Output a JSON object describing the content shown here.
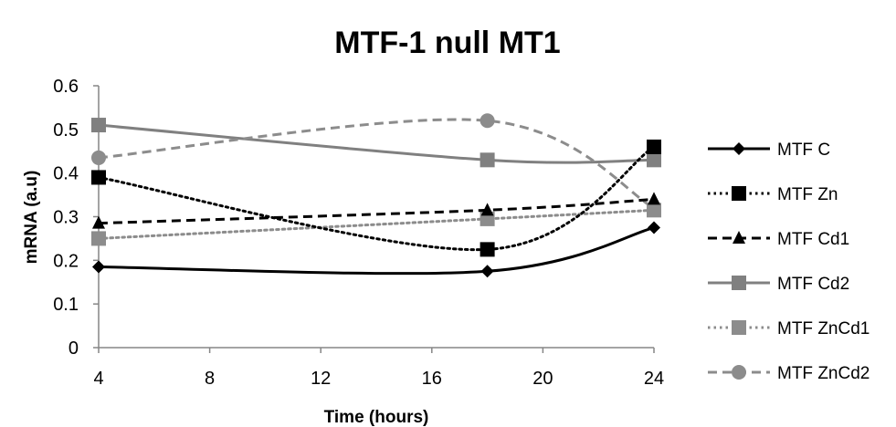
{
  "chart_data": {
    "type": "line",
    "title": "MTF-1 null MT1",
    "xlabel": "Time (hours)",
    "ylabel": "mRNA (a.u)",
    "xlim": [
      4,
      24
    ],
    "ylim": [
      0,
      0.6
    ],
    "xticks": [
      4,
      8,
      12,
      16,
      20,
      24
    ],
    "yticks": [
      0,
      0.1,
      0.2,
      0.3,
      0.4,
      0.5,
      0.6
    ],
    "xtick_labels": [
      "4",
      "8",
      "12",
      "16",
      "20",
      "24"
    ],
    "ytick_labels": [
      "0",
      "0.1",
      "0.2",
      "0.3",
      "0.4",
      "0.5",
      "0.6"
    ],
    "grid": false,
    "legend_position": "right",
    "x": [
      4,
      18,
      24
    ],
    "series": [
      {
        "name": "MTF C",
        "values": [
          0.185,
          0.175,
          0.275
        ],
        "color": "#000000",
        "dash": "solid",
        "marker": "diamond"
      },
      {
        "name": "MTF Zn",
        "values": [
          0.39,
          0.225,
          0.46
        ],
        "color": "#000000",
        "dash": "dotted",
        "marker": "square"
      },
      {
        "name": "MTF Cd1",
        "values": [
          0.285,
          0.315,
          0.34
        ],
        "color": "#000000",
        "dash": "dashed",
        "marker": "triangle"
      },
      {
        "name": "MTF Cd2",
        "values": [
          0.51,
          0.43,
          0.43
        ],
        "color": "#808080",
        "dash": "solid",
        "marker": "square"
      },
      {
        "name": "MTF ZnCd1",
        "values": [
          0.25,
          0.295,
          0.315
        ],
        "color": "#8c8c8c",
        "dash": "dotted",
        "marker": "square"
      },
      {
        "name": "MTF ZnCd2",
        "values": [
          0.435,
          0.52,
          0.32
        ],
        "color": "#8c8c8c",
        "dash": "dashed",
        "marker": "circle"
      }
    ]
  }
}
